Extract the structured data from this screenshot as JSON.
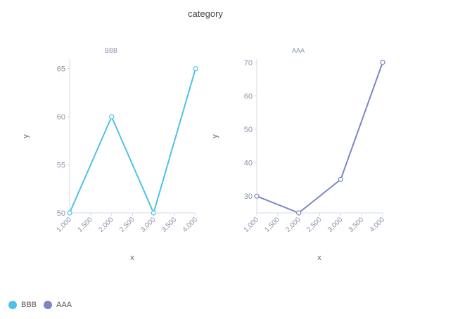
{
  "title": "category",
  "colors": {
    "BBB": "#4FC1E9",
    "AAA": "#7C86C7"
  },
  "legend": [
    {
      "label": "BBB",
      "color": "#4FC1E9"
    },
    {
      "label": "AAA",
      "color": "#7C86C7"
    }
  ],
  "chart_data": [
    {
      "type": "line",
      "title": "BBB",
      "xlabel": "x",
      "ylabel": "y",
      "x": [
        1000,
        2000,
        3000,
        4000
      ],
      "series": [
        {
          "name": "BBB",
          "values": [
            50,
            60,
            50,
            65
          ]
        }
      ],
      "xlim": [
        1000,
        4000
      ],
      "ylim": [
        50,
        66
      ],
      "xticks": [
        "1,000",
        "1,500",
        "2,000",
        "2,500",
        "3,000",
        "3,500",
        "4,000"
      ],
      "yticks": [
        "50",
        "55",
        "60",
        "65"
      ],
      "grid": false
    },
    {
      "type": "line",
      "title": "AAA",
      "xlabel": "x",
      "ylabel": "y",
      "x": [
        1000,
        2000,
        3000,
        4000
      ],
      "series": [
        {
          "name": "AAA",
          "values": [
            30,
            25,
            35,
            70
          ]
        }
      ],
      "xlim": [
        1000,
        4000
      ],
      "ylim": [
        25,
        71
      ],
      "xticks": [
        "1,000",
        "1,500",
        "2,000",
        "2,500",
        "3,000",
        "3,500",
        "4,000"
      ],
      "yticks": [
        "30",
        "40",
        "50",
        "60",
        "70"
      ],
      "grid": false
    }
  ]
}
